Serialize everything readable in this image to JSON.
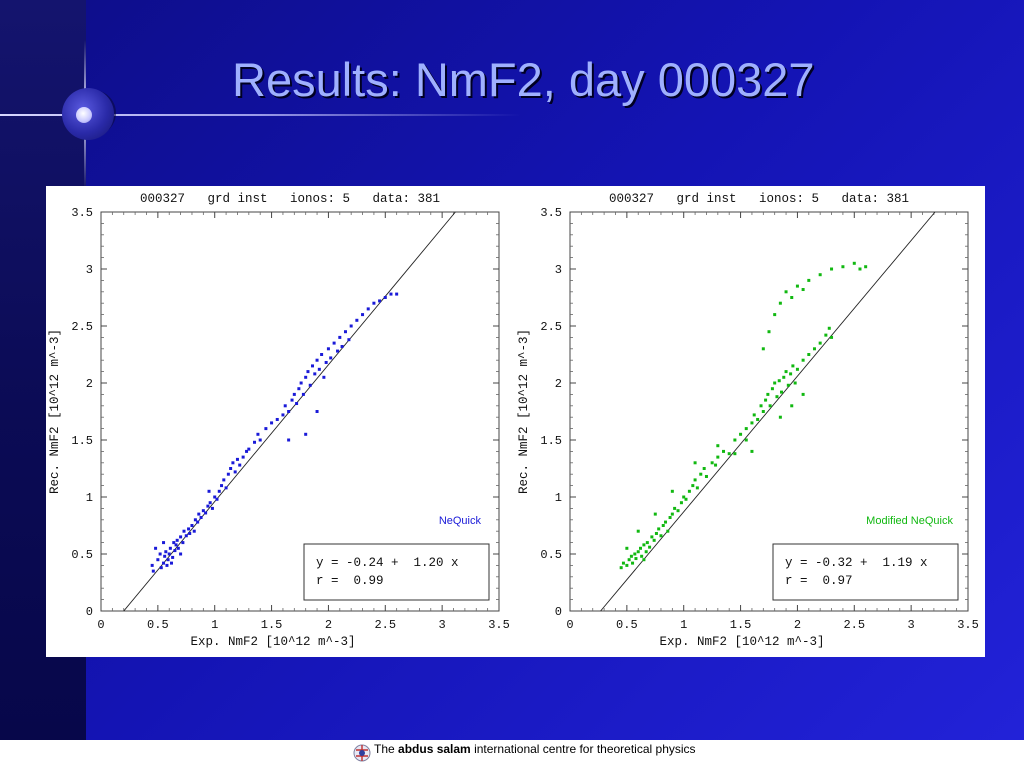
{
  "slide": {
    "title": "Results: NmF2, day 000327",
    "colors": {
      "background": "#1414b4",
      "title": "#9fb0ff"
    }
  },
  "footer": {
    "prefix": "The",
    "bold": "abdus salam",
    "rest": "international centre for  theoretical  physics"
  },
  "chart_data": [
    {
      "type": "scatter",
      "title": "000327   grd inst   ionos: 5   data: 381",
      "xlabel": "Exp. NmF2 [10^12 m^-3]",
      "ylabel": "Rec. NmF2 [10^12 m^-3]",
      "xlim": [
        0,
        3.5
      ],
      "ylim": [
        0,
        3.5
      ],
      "xticks": [
        "0",
        "0.5",
        "1",
        "1.5",
        "2",
        "2.5",
        "3",
        "3.5"
      ],
      "yticks": [
        "0",
        "0.5",
        "1",
        "1.5",
        "2",
        "2.5",
        "3",
        "3.5"
      ],
      "label": "NeQuick",
      "color": "#1a1ad8",
      "fit": {
        "intercept": -0.24,
        "slope": 1.2
      },
      "stats_line1": "y = -0.24 +  1.20 x",
      "stats_line2": "r =  0.99",
      "points": [
        [
          0.45,
          0.4
        ],
        [
          0.46,
          0.35
        ],
        [
          0.48,
          0.55
        ],
        [
          0.5,
          0.45
        ],
        [
          0.52,
          0.5
        ],
        [
          0.53,
          0.38
        ],
        [
          0.55,
          0.42
        ],
        [
          0.56,
          0.48
        ],
        [
          0.57,
          0.52
        ],
        [
          0.58,
          0.4
        ],
        [
          0.59,
          0.45
        ],
        [
          0.6,
          0.5
        ],
        [
          0.61,
          0.55
        ],
        [
          0.62,
          0.42
        ],
        [
          0.63,
          0.47
        ],
        [
          0.64,
          0.6
        ],
        [
          0.65,
          0.53
        ],
        [
          0.66,
          0.58
        ],
        [
          0.67,
          0.62
        ],
        [
          0.68,
          0.55
        ],
        [
          0.7,
          0.65
        ],
        [
          0.72,
          0.6
        ],
        [
          0.73,
          0.7
        ],
        [
          0.75,
          0.66
        ],
        [
          0.77,
          0.72
        ],
        [
          0.78,
          0.68
        ],
        [
          0.8,
          0.75
        ],
        [
          0.82,
          0.7
        ],
        [
          0.83,
          0.8
        ],
        [
          0.85,
          0.78
        ],
        [
          0.86,
          0.85
        ],
        [
          0.88,
          0.82
        ],
        [
          0.9,
          0.88
        ],
        [
          0.92,
          0.86
        ],
        [
          0.94,
          0.92
        ],
        [
          0.96,
          0.95
        ],
        [
          0.98,
          0.9
        ],
        [
          1.0,
          1.0
        ],
        [
          1.02,
          0.98
        ],
        [
          1.04,
          1.05
        ],
        [
          1.06,
          1.1
        ],
        [
          1.08,
          1.15
        ],
        [
          1.1,
          1.08
        ],
        [
          1.12,
          1.2
        ],
        [
          1.14,
          1.25
        ],
        [
          1.16,
          1.3
        ],
        [
          1.18,
          1.22
        ],
        [
          1.2,
          1.33
        ],
        [
          1.22,
          1.28
        ],
        [
          1.25,
          1.35
        ],
        [
          1.28,
          1.4
        ],
        [
          1.3,
          1.42
        ],
        [
          1.35,
          1.48
        ],
        [
          1.38,
          1.55
        ],
        [
          1.4,
          1.5
        ],
        [
          1.45,
          1.6
        ],
        [
          1.5,
          1.65
        ],
        [
          1.55,
          1.68
        ],
        [
          1.6,
          1.72
        ],
        [
          1.62,
          1.8
        ],
        [
          1.65,
          1.75
        ],
        [
          1.68,
          1.85
        ],
        [
          1.7,
          1.9
        ],
        [
          1.72,
          1.82
        ],
        [
          1.74,
          1.95
        ],
        [
          1.76,
          2.0
        ],
        [
          1.78,
          1.9
        ],
        [
          1.8,
          2.05
        ],
        [
          1.82,
          2.1
        ],
        [
          1.84,
          1.98
        ],
        [
          1.86,
          2.15
        ],
        [
          1.88,
          2.08
        ],
        [
          1.9,
          2.2
        ],
        [
          1.92,
          2.12
        ],
        [
          1.94,
          2.25
        ],
        [
          1.96,
          2.05
        ],
        [
          1.98,
          2.18
        ],
        [
          2.0,
          2.3
        ],
        [
          2.02,
          2.22
        ],
        [
          2.05,
          2.35
        ],
        [
          2.08,
          2.28
        ],
        [
          2.1,
          2.4
        ],
        [
          2.12,
          2.32
        ],
        [
          2.15,
          2.45
        ],
        [
          2.18,
          2.38
        ],
        [
          2.2,
          2.5
        ],
        [
          2.25,
          2.55
        ],
        [
          2.3,
          2.6
        ],
        [
          2.35,
          2.65
        ],
        [
          2.4,
          2.7
        ],
        [
          2.45,
          2.72
        ],
        [
          2.5,
          2.75
        ],
        [
          2.55,
          2.78
        ],
        [
          2.6,
          2.78
        ],
        [
          1.8,
          1.55
        ],
        [
          1.65,
          1.5
        ],
        [
          1.9,
          1.75
        ],
        [
          0.7,
          0.5
        ],
        [
          0.55,
          0.6
        ],
        [
          0.95,
          1.05
        ]
      ]
    },
    {
      "type": "scatter",
      "title": "000327   grd inst   ionos: 5   data: 381",
      "xlabel": "Exp. NmF2 [10^12 m^-3]",
      "ylabel": "Rec. NmF2 [10^12 m^-3]",
      "xlim": [
        0,
        3.5
      ],
      "ylim": [
        0,
        3.5
      ],
      "xticks": [
        "0",
        "0.5",
        "1",
        "1.5",
        "2",
        "2.5",
        "3",
        "3.5"
      ],
      "yticks": [
        "0",
        "0.5",
        "1",
        "1.5",
        "2",
        "2.5",
        "3",
        "3.5"
      ],
      "label": "Modified NeQuick",
      "color": "#11b811",
      "fit": {
        "intercept": -0.32,
        "slope": 1.19
      },
      "stats_line1": "y = -0.32 +  1.19 x",
      "stats_line2": "r =  0.97",
      "points": [
        [
          0.45,
          0.38
        ],
        [
          0.47,
          0.42
        ],
        [
          0.5,
          0.4
        ],
        [
          0.52,
          0.45
        ],
        [
          0.54,
          0.48
        ],
        [
          0.55,
          0.42
        ],
        [
          0.57,
          0.5
        ],
        [
          0.58,
          0.46
        ],
        [
          0.6,
          0.52
        ],
        [
          0.62,
          0.55
        ],
        [
          0.63,
          0.48
        ],
        [
          0.65,
          0.58
        ],
        [
          0.67,
          0.52
        ],
        [
          0.68,
          0.6
        ],
        [
          0.7,
          0.56
        ],
        [
          0.72,
          0.65
        ],
        [
          0.74,
          0.62
        ],
        [
          0.76,
          0.68
        ],
        [
          0.78,
          0.72
        ],
        [
          0.8,
          0.66
        ],
        [
          0.82,
          0.75
        ],
        [
          0.84,
          0.78
        ],
        [
          0.86,
          0.7
        ],
        [
          0.88,
          0.82
        ],
        [
          0.9,
          0.85
        ],
        [
          0.92,
          0.9
        ],
        [
          0.95,
          0.88
        ],
        [
          0.98,
          0.95
        ],
        [
          1.0,
          1.0
        ],
        [
          1.02,
          0.98
        ],
        [
          1.05,
          1.05
        ],
        [
          1.08,
          1.1
        ],
        [
          1.1,
          1.15
        ],
        [
          1.12,
          1.08
        ],
        [
          1.15,
          1.2
        ],
        [
          1.18,
          1.25
        ],
        [
          1.2,
          1.18
        ],
        [
          1.25,
          1.3
        ],
        [
          1.28,
          1.28
        ],
        [
          1.3,
          1.35
        ],
        [
          1.35,
          1.4
        ],
        [
          1.4,
          1.38
        ],
        [
          1.45,
          1.5
        ],
        [
          1.5,
          1.55
        ],
        [
          1.55,
          1.6
        ],
        [
          1.6,
          1.65
        ],
        [
          1.62,
          1.72
        ],
        [
          1.65,
          1.68
        ],
        [
          1.68,
          1.8
        ],
        [
          1.7,
          1.75
        ],
        [
          1.72,
          1.85
        ],
        [
          1.74,
          1.9
        ],
        [
          1.76,
          1.8
        ],
        [
          1.78,
          1.95
        ],
        [
          1.8,
          2.0
        ],
        [
          1.82,
          1.88
        ],
        [
          1.84,
          2.02
        ],
        [
          1.86,
          1.92
        ],
        [
          1.88,
          2.05
        ],
        [
          1.9,
          2.1
        ],
        [
          1.92,
          1.98
        ],
        [
          1.94,
          2.08
        ],
        [
          1.96,
          2.15
        ],
        [
          1.98,
          2.0
        ],
        [
          2.0,
          2.12
        ],
        [
          2.05,
          2.2
        ],
        [
          2.1,
          2.25
        ],
        [
          2.15,
          2.3
        ],
        [
          2.2,
          2.35
        ],
        [
          2.25,
          2.42
        ],
        [
          2.28,
          2.48
        ],
        [
          2.3,
          2.4
        ],
        [
          1.7,
          2.3
        ],
        [
          1.75,
          2.45
        ],
        [
          1.8,
          2.6
        ],
        [
          1.85,
          2.7
        ],
        [
          1.9,
          2.8
        ],
        [
          2.0,
          2.85
        ],
        [
          2.1,
          2.9
        ],
        [
          2.2,
          2.95
        ],
        [
          2.3,
          3.0
        ],
        [
          2.4,
          3.02
        ],
        [
          2.5,
          3.05
        ],
        [
          2.55,
          3.0
        ],
        [
          2.6,
          3.02
        ],
        [
          1.95,
          2.75
        ],
        [
          2.05,
          2.82
        ],
        [
          0.6,
          0.7
        ],
        [
          0.75,
          0.85
        ],
        [
          0.9,
          1.05
        ],
        [
          1.1,
          1.3
        ],
        [
          1.3,
          1.45
        ],
        [
          1.45,
          1.38
        ],
        [
          1.55,
          1.5
        ],
        [
          1.6,
          1.4
        ],
        [
          1.85,
          1.7
        ],
        [
          1.95,
          1.8
        ],
        [
          2.05,
          1.9
        ],
        [
          0.5,
          0.55
        ],
        [
          0.65,
          0.45
        ]
      ]
    }
  ]
}
